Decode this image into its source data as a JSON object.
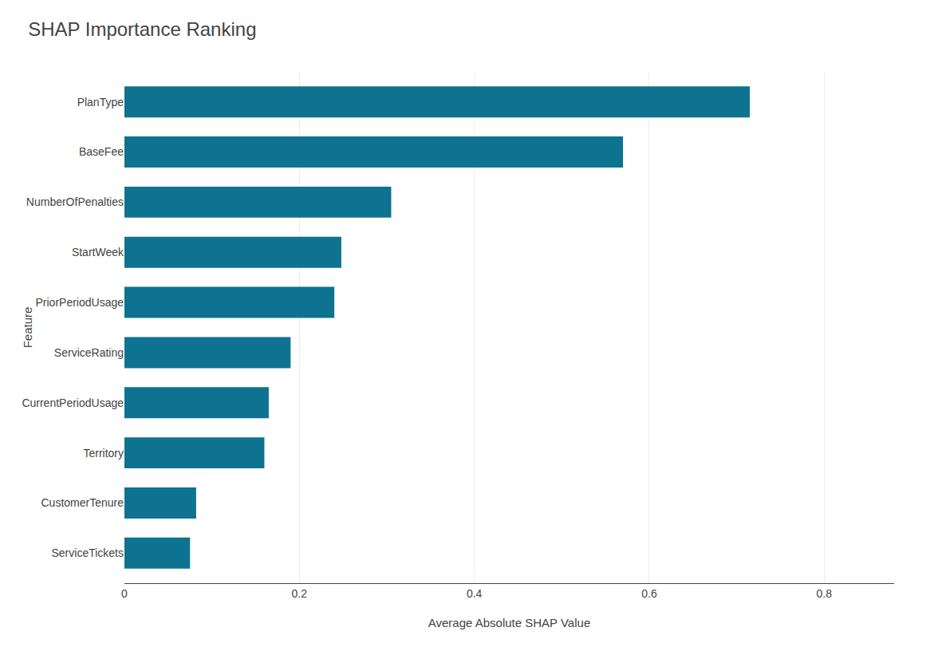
{
  "chart_data": {
    "type": "bar",
    "orientation": "horizontal",
    "title": "SHAP Importance Ranking",
    "xlabel": "Average Absolute SHAP Value",
    "ylabel": "Feature",
    "categories": [
      "ServiceTickets",
      "CustomerTenure",
      "Territory",
      "CurrentPeriodUsage",
      "ServiceRating",
      "PriorPeriodUsage",
      "StartWeek",
      "NumberOfPenalties",
      "BaseFee",
      "PlanType"
    ],
    "values": [
      0.075,
      0.082,
      0.16,
      0.165,
      0.19,
      0.24,
      0.248,
      0.305,
      0.57,
      0.715
    ],
    "color": "#0d7390",
    "xlim": [
      0,
      0.88
    ],
    "xticks": [
      0,
      0.2,
      0.4,
      0.6,
      0.8
    ],
    "grid": true
  }
}
